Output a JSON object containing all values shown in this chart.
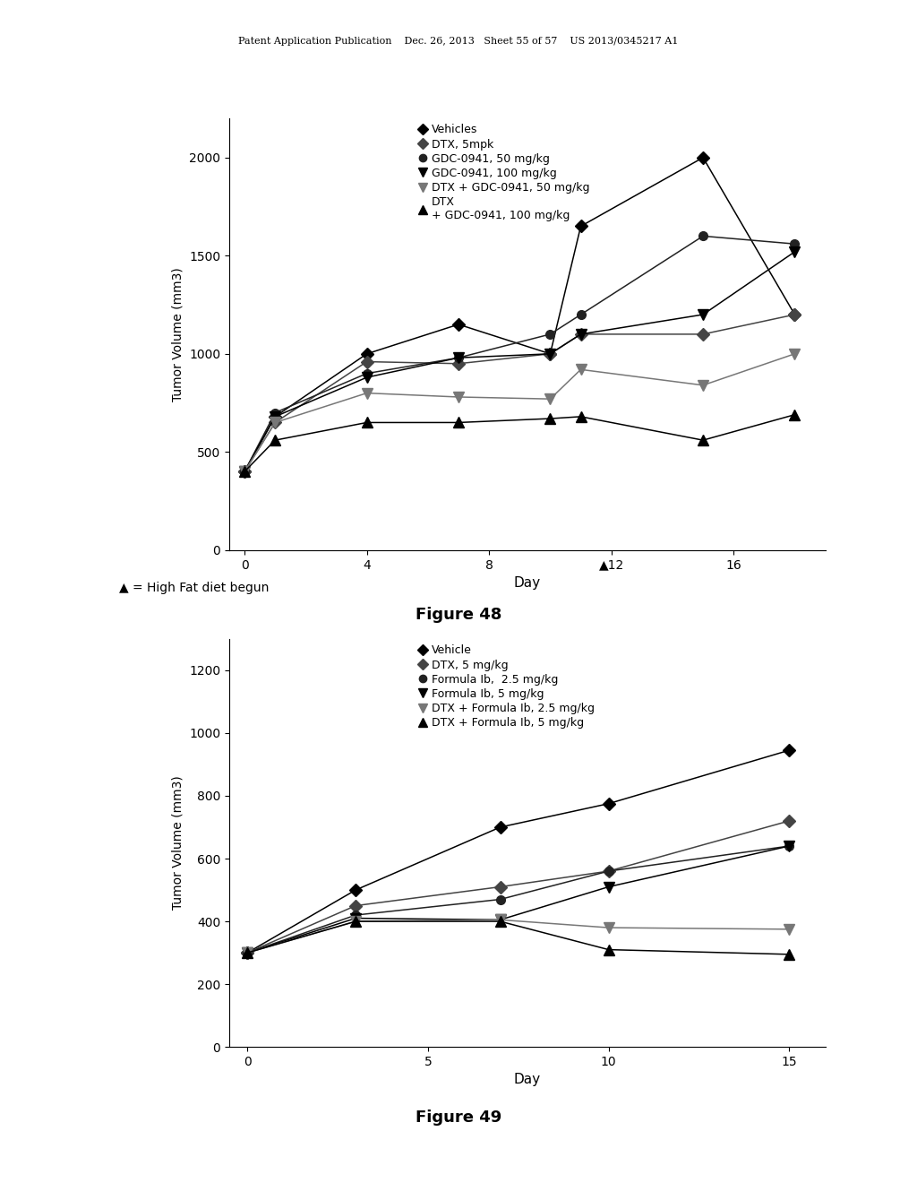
{
  "fig48": {
    "figure_label": "Figure 48",
    "xlabel": "Day",
    "ylabel": "Tumor Volume (mm3)",
    "ylim": [
      0,
      2200
    ],
    "yticks": [
      0,
      500,
      1000,
      1500,
      2000
    ],
    "xlim": [
      -0.5,
      19
    ],
    "xticks": [
      0,
      4,
      8,
      12,
      16
    ],
    "series": [
      {
        "label": "Vehicles",
        "marker": "D",
        "color": "#000000",
        "markersize": 7,
        "x": [
          0,
          1,
          4,
          7,
          10,
          11,
          15,
          18
        ],
        "y": [
          400,
          680,
          1000,
          1150,
          1000,
          1650,
          2000,
          1200
        ]
      },
      {
        "label": "DTX, 5mpk",
        "marker": "D",
        "color": "#444444",
        "markersize": 7,
        "x": [
          0,
          1,
          4,
          7,
          10,
          11,
          15,
          18
        ],
        "y": [
          400,
          650,
          960,
          950,
          1000,
          1100,
          1100,
          1200
        ]
      },
      {
        "label": "GDC-0941, 50 mg/kg",
        "marker": "o",
        "color": "#222222",
        "markersize": 7,
        "x": [
          0,
          1,
          4,
          7,
          10,
          11,
          15,
          18
        ],
        "y": [
          400,
          700,
          900,
          980,
          1100,
          1200,
          1600,
          1560
        ]
      },
      {
        "label": "GDC-0941, 100 mg/kg",
        "marker": "v",
        "color": "#000000",
        "markersize": 8,
        "x": [
          0,
          1,
          4,
          7,
          10,
          11,
          15,
          18
        ],
        "y": [
          400,
          680,
          880,
          980,
          1000,
          1100,
          1200,
          1520
        ]
      },
      {
        "label": "DTX + GDC-0941, 50 mg/kg",
        "marker": "v",
        "color": "#777777",
        "markersize": 8,
        "x": [
          0,
          1,
          4,
          7,
          10,
          11,
          15,
          18
        ],
        "y": [
          400,
          650,
          800,
          780,
          770,
          920,
          840,
          1000
        ]
      },
      {
        "label": "DTX\n+ GDC-0941, 100 mg/kg",
        "marker": "^",
        "color": "#000000",
        "markersize": 8,
        "x": [
          0,
          1,
          4,
          7,
          10,
          11,
          15,
          18
        ],
        "y": [
          400,
          560,
          650,
          650,
          670,
          680,
          560,
          690
        ]
      }
    ],
    "hfd_x": 11,
    "hfd_note": "▲ = High Fat diet begun"
  },
  "fig49": {
    "figure_label": "Figure 49",
    "xlabel": "Day",
    "ylabel": "Tumor Volume (mm3)",
    "ylim": [
      0,
      1300
    ],
    "yticks": [
      0,
      200,
      400,
      600,
      800,
      1000,
      1200
    ],
    "xlim": [
      -0.5,
      16
    ],
    "xticks": [
      0,
      5,
      10,
      15
    ],
    "series": [
      {
        "label": "Vehicle",
        "marker": "D",
        "color": "#000000",
        "markersize": 7,
        "x": [
          0,
          3,
          7,
          10,
          15
        ],
        "y": [
          300,
          500,
          700,
          775,
          945
        ]
      },
      {
        "label": "DTX, 5 mg/kg",
        "marker": "D",
        "color": "#444444",
        "markersize": 7,
        "x": [
          0,
          3,
          7,
          10,
          15
        ],
        "y": [
          300,
          450,
          510,
          560,
          720
        ]
      },
      {
        "label": "Formula Ib,  2.5 mg/kg",
        "marker": "o",
        "color": "#222222",
        "markersize": 7,
        "x": [
          0,
          3,
          7,
          10,
          15
        ],
        "y": [
          300,
          420,
          470,
          560,
          640
        ]
      },
      {
        "label": "Formula Ib, 5 mg/kg",
        "marker": "v",
        "color": "#000000",
        "markersize": 8,
        "x": [
          0,
          3,
          7,
          10,
          15
        ],
        "y": [
          300,
          410,
          405,
          510,
          640
        ]
      },
      {
        "label": "DTX + Formula Ib, 2.5 mg/kg",
        "marker": "v",
        "color": "#777777",
        "markersize": 8,
        "x": [
          0,
          3,
          7,
          10,
          15
        ],
        "y": [
          300,
          400,
          405,
          380,
          375
        ]
      },
      {
        "label": "DTX + Formula Ib, 5 mg/kg",
        "marker": "^",
        "color": "#000000",
        "markersize": 8,
        "x": [
          0,
          3,
          7,
          10,
          15
        ],
        "y": [
          300,
          400,
          400,
          310,
          295
        ]
      }
    ]
  },
  "header_text": "Patent Application Publication    Dec. 26, 2013   Sheet 55 of 57    US 2013/0345217 A1",
  "background_color": "#ffffff",
  "text_color": "#000000"
}
